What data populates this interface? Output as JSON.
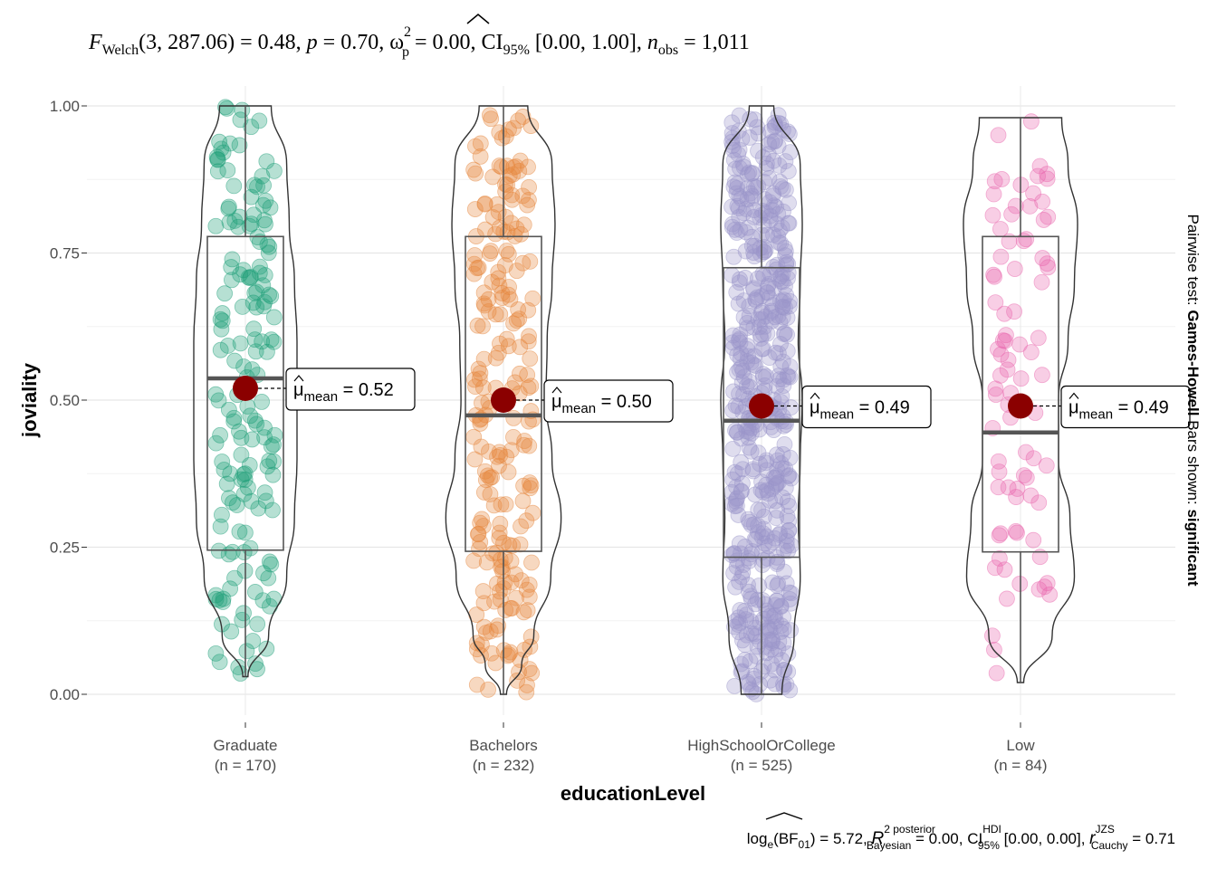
{
  "title": {
    "stat_symbol": "F",
    "stat_sub": "Welch",
    "stat_args": "(3, 287.06)",
    "stat_value": " = 0.48, ",
    "p_symbol": "p",
    "p_value": " = 0.70, ",
    "effect_symbol": "ω",
    "effect_sup": "2",
    "effect_sub": "p",
    "effect_value": " = 0.00, CI",
    "ci_sub": "95%",
    "ci_value": " [0.00, 1.00], ",
    "n_symbol": "n",
    "n_sub": "obs",
    "n_value": " = 1,011"
  },
  "subtitle_side": {
    "prefix": "Pairwise test: ",
    "test": "Games-Howell",
    "middle": " Bars shown: ",
    "shown": "significant"
  },
  "caption": {
    "log": "log",
    "log_sub": "e",
    "bf": "(BF",
    "bf_sub": "01",
    "bf_value": ") = 5.72, ",
    "r_symbol": "R",
    "r_sup": "2 posterior",
    "r_sub": "Bayesian",
    "r_value": " = 0.00, CI",
    "ci_sup": "HDI",
    "ci_sub": "95%",
    "ci_value": " [0.00, 0.00], ",
    "rc_symbol": "r",
    "rc_sup": "JZS",
    "rc_sub": "Cauchy",
    "rc_value": " = 0.71"
  },
  "chart_data": {
    "type": "violin-box-scatter",
    "xlabel": "educationLevel",
    "ylabel": "joviality",
    "ylim": [
      0,
      1
    ],
    "yticks": [
      0,
      0.25,
      0.5,
      0.75,
      1.0
    ],
    "ytick_labels": [
      "0.00",
      "0.25",
      "0.50",
      "0.75",
      "1.00"
    ],
    "grid": true,
    "mean_label_prefix": "μ",
    "mean_label_sub": "mean",
    "groups": [
      {
        "name": "Graduate",
        "n_label": "(n = 170)",
        "n": 170,
        "color": "#1b9e77",
        "min": 0.03,
        "q1": 0.245,
        "median": 0.537,
        "q3": 0.778,
        "max": 1.0,
        "mean": 0.52,
        "mean_label": " = 0.52",
        "violin": [
          [
            0.03,
            0.05
          ],
          [
            0.1,
            0.45
          ],
          [
            0.2,
            0.8
          ],
          [
            0.3,
            0.95
          ],
          [
            0.4,
            1.0
          ],
          [
            0.5,
            1.0
          ],
          [
            0.6,
            1.0
          ],
          [
            0.7,
            0.95
          ],
          [
            0.8,
            0.85
          ],
          [
            0.9,
            0.8
          ],
          [
            1.0,
            0.5
          ]
        ]
      },
      {
        "name": "Bachelors",
        "n_label": "(n = 232)",
        "n": 232,
        "color": "#e6853b",
        "min": 0.0,
        "q1": 0.243,
        "median": 0.474,
        "q3": 0.778,
        "max": 1.0,
        "mean": 0.5,
        "mean_label": " = 0.50",
        "violin": [
          [
            0.0,
            0.05
          ],
          [
            0.05,
            0.3
          ],
          [
            0.1,
            0.5
          ],
          [
            0.2,
            0.78
          ],
          [
            0.3,
            0.95
          ],
          [
            0.4,
            0.8
          ],
          [
            0.5,
            0.7
          ],
          [
            0.6,
            0.72
          ],
          [
            0.7,
            0.8
          ],
          [
            0.8,
            0.85
          ],
          [
            0.9,
            0.8
          ],
          [
            1.0,
            0.4
          ]
        ]
      },
      {
        "name": "HighSchoolOrCollege",
        "n_label": "(n = 525)",
        "n": 525,
        "color": "#9a96c9",
        "min": 0.0,
        "q1": 0.233,
        "median": 0.465,
        "q3": 0.725,
        "max": 1.0,
        "mean": 0.49,
        "mean_label": " = 0.49",
        "violin": [
          [
            0.0,
            0.5
          ],
          [
            0.1,
            0.8
          ],
          [
            0.2,
            0.95
          ],
          [
            0.3,
            0.9
          ],
          [
            0.4,
            0.95
          ],
          [
            0.5,
            1.0
          ],
          [
            0.6,
            0.9
          ],
          [
            0.7,
            0.95
          ],
          [
            0.8,
            1.0
          ],
          [
            0.9,
            0.95
          ],
          [
            1.0,
            0.3
          ]
        ]
      },
      {
        "name": "Low",
        "n_label": "(n = 84)",
        "n": 84,
        "color": "#e968ad",
        "min": 0.02,
        "q1": 0.242,
        "median": 0.445,
        "q3": 0.778,
        "max": 0.98,
        "mean": 0.49,
        "mean_label": " = 0.49",
        "violin": [
          [
            0.02,
            0.05
          ],
          [
            0.1,
            0.5
          ],
          [
            0.2,
            0.85
          ],
          [
            0.3,
            0.78
          ],
          [
            0.4,
            0.6
          ],
          [
            0.5,
            0.6
          ],
          [
            0.6,
            0.75
          ],
          [
            0.7,
            0.85
          ],
          [
            0.8,
            0.9
          ],
          [
            0.9,
            0.75
          ],
          [
            0.98,
            0.65
          ]
        ]
      }
    ]
  }
}
